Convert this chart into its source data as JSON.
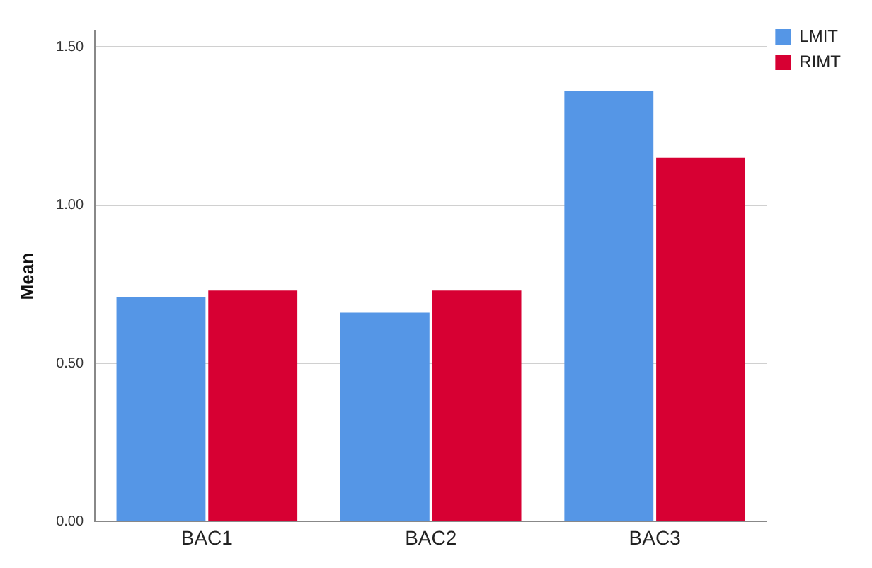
{
  "chart_data": {
    "type": "bar",
    "ylabel": "Mean",
    "categories": [
      "BAC1",
      "BAC2",
      "BAC3"
    ],
    "series": [
      {
        "name": "LMIT",
        "color": "#5596e6",
        "values": [
          0.71,
          0.66,
          1.36
        ]
      },
      {
        "name": "RIMT",
        "color": "#d70033",
        "values": [
          0.73,
          0.73,
          1.15
        ]
      }
    ],
    "ylim": [
      0,
      1.55
    ],
    "yticks": [
      {
        "value": 0,
        "label": "0.00"
      },
      {
        "value": 0.5,
        "label": "0.50"
      },
      {
        "value": 1,
        "label": "1.00"
      },
      {
        "value": 1.5,
        "label": "1.50"
      }
    ],
    "grid": "y",
    "legend": "top right"
  }
}
